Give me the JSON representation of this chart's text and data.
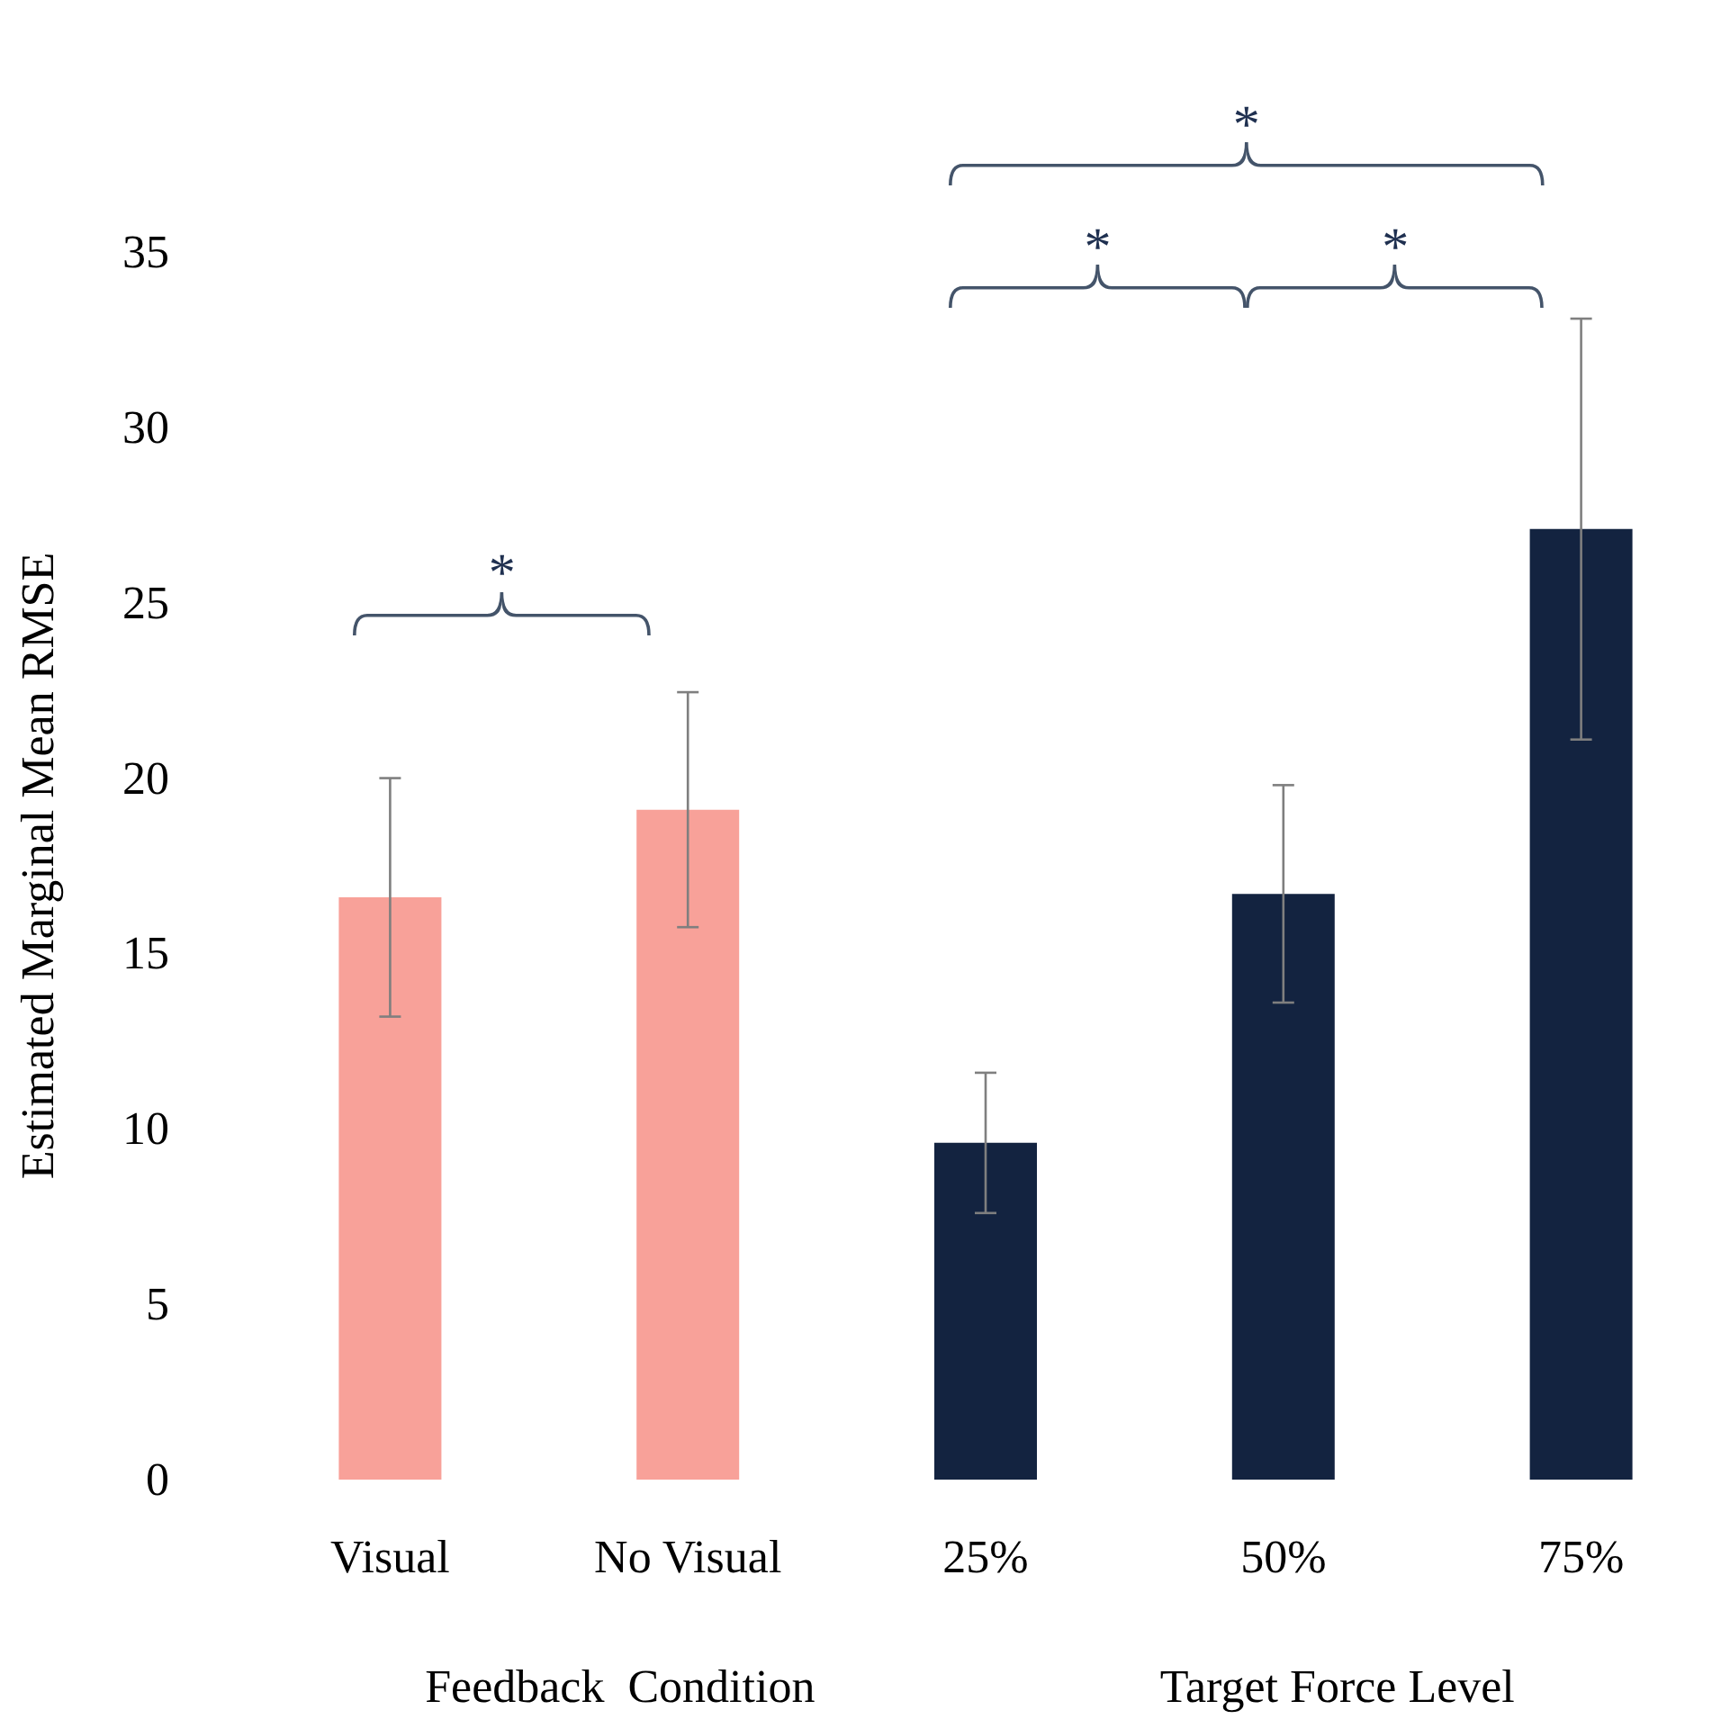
{
  "chart_data": {
    "type": "bar",
    "ylabel": "Estimated Marginal Mean RMSE",
    "categories": [
      "Visual",
      "No Visual",
      "25%",
      "50%",
      "75%"
    ],
    "series": [
      {
        "color": "#f8a199",
        "values": [
          16.6,
          19.1,
          null,
          null,
          null
        ],
        "errors": [
          3.4,
          3.35,
          null,
          null,
          null
        ]
      },
      {
        "color": "#132340",
        "values": [
          null,
          null,
          9.6,
          16.7,
          27.1
        ],
        "errors": [
          null,
          null,
          2,
          3.1,
          6
        ]
      }
    ],
    "ylim": [
      0,
      35
    ],
    "yticks": [
      0,
      5,
      10,
      15,
      20,
      25,
      30,
      35
    ],
    "grid": false,
    "annotations": [
      "Feedback  Condition",
      "Target Force Level",
      "*",
      "*",
      "*",
      "*"
    ]
  }
}
